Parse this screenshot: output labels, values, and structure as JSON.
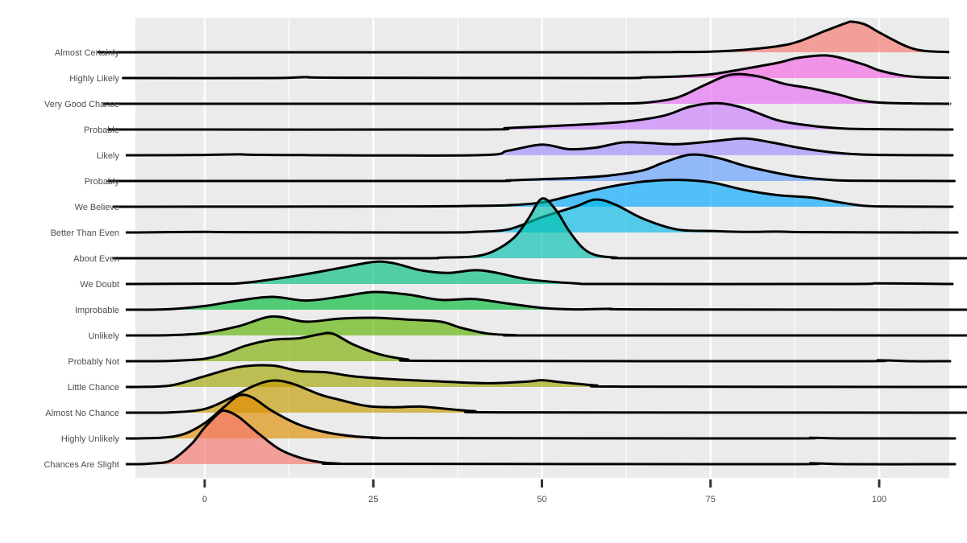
{
  "chart_data": {
    "type": "area",
    "subtype": "ridgeline",
    "title": "",
    "xlabel": "",
    "ylabel": "",
    "xlim": [
      -10,
      110
    ],
    "x_ticks": [
      0,
      25,
      50,
      75,
      100
    ],
    "x_tick_labels": [
      "0",
      "25",
      "50",
      "75",
      "100"
    ],
    "grid": true,
    "legend": "none",
    "panel_background": "#ebebeb",
    "grid_color": "#ffffff",
    "series": [
      {
        "name": "Almost Certainly",
        "color": "#F8766D",
        "points": [
          [
            -10,
            0
          ],
          [
            60,
            0
          ],
          [
            70,
            0.01
          ],
          [
            75,
            0.02
          ],
          [
            80,
            0.08
          ],
          [
            85,
            0.2
          ],
          [
            88,
            0.35
          ],
          [
            92,
            0.7
          ],
          [
            95,
            0.95
          ],
          [
            96,
            1.0
          ],
          [
            98,
            0.9
          ],
          [
            100,
            0.65
          ],
          [
            103,
            0.3
          ],
          [
            105,
            0.12
          ],
          [
            107,
            0.04
          ],
          [
            110,
            0.01
          ]
        ]
      },
      {
        "name": "Highly Likely",
        "color": "#F564E3",
        "points": [
          [
            -10,
            0
          ],
          [
            10,
            0
          ],
          [
            15,
            0.03
          ],
          [
            20,
            0.01
          ],
          [
            60,
            0
          ],
          [
            65,
            0.02
          ],
          [
            70,
            0.05
          ],
          [
            75,
            0.12
          ],
          [
            80,
            0.3
          ],
          [
            85,
            0.5
          ],
          [
            88,
            0.66
          ],
          [
            92,
            0.74
          ],
          [
            95,
            0.62
          ],
          [
            98,
            0.42
          ],
          [
            100,
            0.25
          ],
          [
            103,
            0.1
          ],
          [
            106,
            0.03
          ],
          [
            110,
            0.01
          ]
        ]
      },
      {
        "name": "Very Good Chance",
        "color": "#E76BF3",
        "points": [
          [
            -10,
            0
          ],
          [
            50,
            0
          ],
          [
            60,
            0.01
          ],
          [
            65,
            0.03
          ],
          [
            70,
            0.2
          ],
          [
            74,
            0.6
          ],
          [
            78,
            0.95
          ],
          [
            82,
            0.9
          ],
          [
            86,
            0.65
          ],
          [
            90,
            0.5
          ],
          [
            94,
            0.3
          ],
          [
            97,
            0.12
          ],
          [
            100,
            0.04
          ],
          [
            105,
            0.01
          ],
          [
            110,
            0
          ]
        ]
      },
      {
        "name": "Probable",
        "color": "#C77CFF",
        "points": [
          [
            -10,
            0
          ],
          [
            40,
            0
          ],
          [
            45,
            0.05
          ],
          [
            55,
            0.15
          ],
          [
            62,
            0.25
          ],
          [
            68,
            0.45
          ],
          [
            72,
            0.75
          ],
          [
            76,
            0.86
          ],
          [
            80,
            0.7
          ],
          [
            85,
            0.3
          ],
          [
            90,
            0.12
          ],
          [
            95,
            0.03
          ],
          [
            100,
            0.01
          ],
          [
            110,
            0
          ]
        ]
      },
      {
        "name": "Likely",
        "color": "#9F8CFF",
        "points": [
          [
            -10,
            0
          ],
          [
            0,
            0.01
          ],
          [
            5,
            0.03
          ],
          [
            10,
            0.01
          ],
          [
            40,
            0
          ],
          [
            45,
            0.15
          ],
          [
            50,
            0.35
          ],
          [
            54,
            0.2
          ],
          [
            58,
            0.25
          ],
          [
            62,
            0.42
          ],
          [
            66,
            0.4
          ],
          [
            70,
            0.36
          ],
          [
            75,
            0.45
          ],
          [
            80,
            0.55
          ],
          [
            84,
            0.42
          ],
          [
            88,
            0.25
          ],
          [
            92,
            0.12
          ],
          [
            96,
            0.04
          ],
          [
            100,
            0.01
          ],
          [
            110,
            0
          ]
        ]
      },
      {
        "name": "Probably",
        "color": "#619CFF",
        "points": [
          [
            -10,
            0
          ],
          [
            40,
            0
          ],
          [
            45,
            0.02
          ],
          [
            50,
            0.06
          ],
          [
            55,
            0.1
          ],
          [
            60,
            0.18
          ],
          [
            65,
            0.35
          ],
          [
            68,
            0.6
          ],
          [
            72,
            0.86
          ],
          [
            76,
            0.76
          ],
          [
            80,
            0.5
          ],
          [
            84,
            0.3
          ],
          [
            88,
            0.14
          ],
          [
            92,
            0.05
          ],
          [
            96,
            0.01
          ],
          [
            110,
            0
          ]
        ]
      },
      {
        "name": "We Believe",
        "color": "#00A9FF",
        "points": [
          [
            -10,
            0
          ],
          [
            30,
            0.01
          ],
          [
            40,
            0.03
          ],
          [
            45,
            0.05
          ],
          [
            50,
            0.14
          ],
          [
            55,
            0.4
          ],
          [
            60,
            0.65
          ],
          [
            65,
            0.82
          ],
          [
            70,
            0.88
          ],
          [
            75,
            0.8
          ],
          [
            80,
            0.55
          ],
          [
            85,
            0.38
          ],
          [
            90,
            0.3
          ],
          [
            94,
            0.15
          ],
          [
            97,
            0.05
          ],
          [
            100,
            0.01
          ],
          [
            110,
            0
          ]
        ]
      },
      {
        "name": "Better Than Even",
        "color": "#00B8E7",
        "points": [
          [
            -10,
            0
          ],
          [
            0,
            0.02
          ],
          [
            5,
            0.01
          ],
          [
            35,
            0
          ],
          [
            40,
            0.02
          ],
          [
            45,
            0.1
          ],
          [
            50,
            0.5
          ],
          [
            55,
            0.85
          ],
          [
            58,
            1.08
          ],
          [
            61,
            0.9
          ],
          [
            65,
            0.45
          ],
          [
            70,
            0.1
          ],
          [
            75,
            0.05
          ],
          [
            80,
            0.02
          ],
          [
            85,
            0.03
          ],
          [
            90,
            0.01
          ],
          [
            110,
            0
          ]
        ]
      },
      {
        "name": "About Even",
        "color": "#00C0AF",
        "points": [
          [
            -10,
            0
          ],
          [
            30,
            0
          ],
          [
            35,
            0.02
          ],
          [
            40,
            0.06
          ],
          [
            43,
            0.25
          ],
          [
            46,
            0.7
          ],
          [
            48,
            1.3
          ],
          [
            50,
            1.95
          ],
          [
            52,
            1.6
          ],
          [
            54,
            0.9
          ],
          [
            56,
            0.35
          ],
          [
            58,
            0.1
          ],
          [
            61,
            0.02
          ],
          [
            65,
            0
          ],
          [
            110,
            0
          ]
        ]
      },
      {
        "name": "We Doubt",
        "color": "#00BF7D",
        "points": [
          [
            -10,
            0
          ],
          [
            0,
            0.01
          ],
          [
            5,
            0.02
          ],
          [
            10,
            0.15
          ],
          [
            15,
            0.32
          ],
          [
            20,
            0.52
          ],
          [
            25,
            0.72
          ],
          [
            28,
            0.68
          ],
          [
            32,
            0.45
          ],
          [
            36,
            0.36
          ],
          [
            40,
            0.45
          ],
          [
            43,
            0.38
          ],
          [
            48,
            0.15
          ],
          [
            55,
            0.02
          ],
          [
            60,
            0
          ],
          [
            95,
            0
          ],
          [
            100,
            0.02
          ],
          [
            110,
            0
          ]
        ]
      },
      {
        "name": "Improbable",
        "color": "#00BA38",
        "points": [
          [
            -10,
            0
          ],
          [
            -5,
            0.02
          ],
          [
            0,
            0.12
          ],
          [
            5,
            0.3
          ],
          [
            10,
            0.42
          ],
          [
            15,
            0.3
          ],
          [
            20,
            0.42
          ],
          [
            25,
            0.58
          ],
          [
            30,
            0.5
          ],
          [
            35,
            0.32
          ],
          [
            40,
            0.35
          ],
          [
            45,
            0.2
          ],
          [
            50,
            0.06
          ],
          [
            55,
            0.01
          ],
          [
            60,
            0.03
          ],
          [
            65,
            0.01
          ],
          [
            110,
            0
          ]
        ]
      },
      {
        "name": "Unlikely",
        "color": "#5BB300",
        "points": [
          [
            -10,
            0
          ],
          [
            -5,
            0.01
          ],
          [
            0,
            0.08
          ],
          [
            5,
            0.3
          ],
          [
            10,
            0.62
          ],
          [
            15,
            0.45
          ],
          [
            20,
            0.55
          ],
          [
            25,
            0.58
          ],
          [
            30,
            0.52
          ],
          [
            35,
            0.45
          ],
          [
            38,
            0.25
          ],
          [
            42,
            0.06
          ],
          [
            46,
            0.01
          ],
          [
            50,
            0
          ],
          [
            110,
            0
          ]
        ]
      },
      {
        "name": "Probably Not",
        "color": "#7CAE00",
        "points": [
          [
            -10,
            0
          ],
          [
            -5,
            0.01
          ],
          [
            0,
            0.08
          ],
          [
            3,
            0.25
          ],
          [
            6,
            0.5
          ],
          [
            10,
            0.7
          ],
          [
            14,
            0.75
          ],
          [
            17,
            0.88
          ],
          [
            19,
            0.9
          ],
          [
            22,
            0.55
          ],
          [
            26,
            0.22
          ],
          [
            30,
            0.06
          ],
          [
            35,
            0.01
          ],
          [
            95,
            0
          ],
          [
            100,
            0.03
          ],
          [
            105,
            0
          ],
          [
            110,
            0
          ]
        ]
      },
      {
        "name": "Little Chance",
        "color": "#A3A500",
        "points": [
          [
            -10,
            0
          ],
          [
            -5,
            0.05
          ],
          [
            0,
            0.35
          ],
          [
            5,
            0.65
          ],
          [
            10,
            0.7
          ],
          [
            14,
            0.52
          ],
          [
            18,
            0.48
          ],
          [
            22,
            0.35
          ],
          [
            28,
            0.25
          ],
          [
            35,
            0.18
          ],
          [
            42,
            0.12
          ],
          [
            48,
            0.18
          ],
          [
            50,
            0.22
          ],
          [
            53,
            0.15
          ],
          [
            58,
            0.05
          ],
          [
            62,
            0.01
          ],
          [
            110,
            0
          ]
        ]
      },
      {
        "name": "Almost No Chance",
        "color": "#C49A00",
        "points": [
          [
            -10,
            0
          ],
          [
            -5,
            0.01
          ],
          [
            0,
            0.12
          ],
          [
            4,
            0.5
          ],
          [
            7,
            0.85
          ],
          [
            10,
            1.05
          ],
          [
            13,
            0.95
          ],
          [
            17,
            0.6
          ],
          [
            20,
            0.42
          ],
          [
            24,
            0.22
          ],
          [
            28,
            0.18
          ],
          [
            32,
            0.2
          ],
          [
            36,
            0.12
          ],
          [
            40,
            0.05
          ],
          [
            45,
            0.01
          ],
          [
            110,
            0
          ]
        ]
      },
      {
        "name": "Highly Unlikely",
        "color": "#DE8C00",
        "points": [
          [
            -10,
            0
          ],
          [
            -6,
            0.03
          ],
          [
            -3,
            0.15
          ],
          [
            0,
            0.5
          ],
          [
            3,
            1.05
          ],
          [
            5,
            1.4
          ],
          [
            7,
            1.35
          ],
          [
            10,
            0.9
          ],
          [
            14,
            0.45
          ],
          [
            18,
            0.2
          ],
          [
            22,
            0.07
          ],
          [
            26,
            0.02
          ],
          [
            30,
            0.01
          ],
          [
            85,
            0
          ],
          [
            90,
            0.02
          ],
          [
            95,
            0
          ],
          [
            110,
            0
          ]
        ]
      },
      {
        "name": "Chances Are Slight",
        "color": "#F8766D",
        "points": [
          [
            -10,
            0
          ],
          [
            -8,
            0.02
          ],
          [
            -5,
            0.12
          ],
          [
            -2,
            0.65
          ],
          [
            0,
            1.2
          ],
          [
            2,
            1.65
          ],
          [
            3,
            1.75
          ],
          [
            5,
            1.55
          ],
          [
            8,
            1.0
          ],
          [
            11,
            0.5
          ],
          [
            14,
            0.22
          ],
          [
            17,
            0.07
          ],
          [
            20,
            0.02
          ],
          [
            23,
            0.01
          ],
          [
            85,
            0
          ],
          [
            90,
            0.03
          ],
          [
            95,
            0
          ],
          [
            110,
            0
          ]
        ]
      }
    ]
  }
}
